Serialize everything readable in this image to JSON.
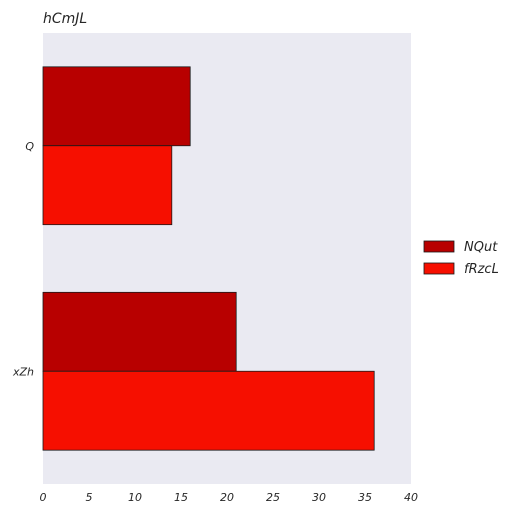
{
  "chart_data": {
    "type": "bar",
    "orientation": "horizontal",
    "title": "hCmJL",
    "xlabel": "",
    "ylabel": "",
    "categories": [
      "Q",
      "xZh"
    ],
    "series": [
      {
        "name": "NQut",
        "values": [
          16,
          21
        ],
        "color": "#b80000"
      },
      {
        "name": "fRzcL",
        "values": [
          14,
          36
        ],
        "color": "#f60f00"
      }
    ],
    "xlim": [
      0,
      40
    ],
    "xticks": [
      0,
      5,
      10,
      15,
      20,
      25,
      30,
      35,
      40
    ],
    "grid": false,
    "legend_position": "right",
    "plot_background": "#eaeaf2"
  }
}
